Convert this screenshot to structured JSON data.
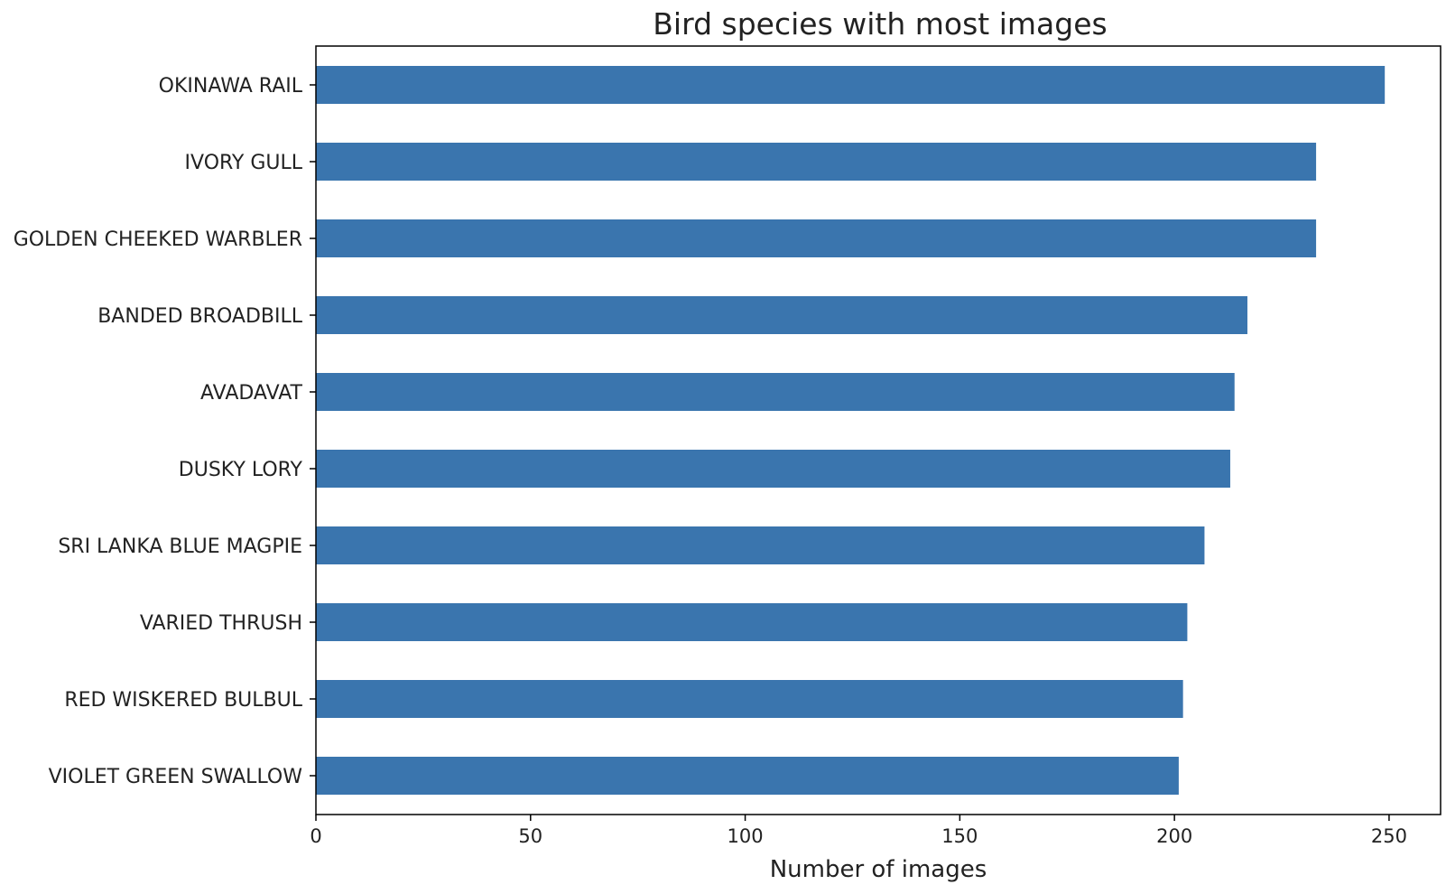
{
  "chart_data": {
    "type": "bar",
    "orientation": "horizontal",
    "title": "Bird species with most images",
    "xlabel": "Number of images",
    "ylabel": "",
    "categories": [
      "OKINAWA RAIL",
      "IVORY GULL",
      "GOLDEN CHEEKED WARBLER",
      "BANDED BROADBILL",
      "AVADAVAT",
      "DUSKY LORY",
      "SRI LANKA BLUE MAGPIE",
      "VARIED THRUSH",
      "RED WISKERED BULBUL",
      "VIOLET GREEN SWALLOW"
    ],
    "values": [
      249,
      233,
      233,
      217,
      214,
      213,
      207,
      203,
      202,
      201
    ],
    "xlim": [
      0,
      262
    ],
    "xticks": [
      0,
      50,
      100,
      150,
      200,
      250
    ],
    "grid": false,
    "legend": "none",
    "colors": {
      "bar": "#3a75ae",
      "axis": "#000000",
      "text": "#222222"
    }
  }
}
